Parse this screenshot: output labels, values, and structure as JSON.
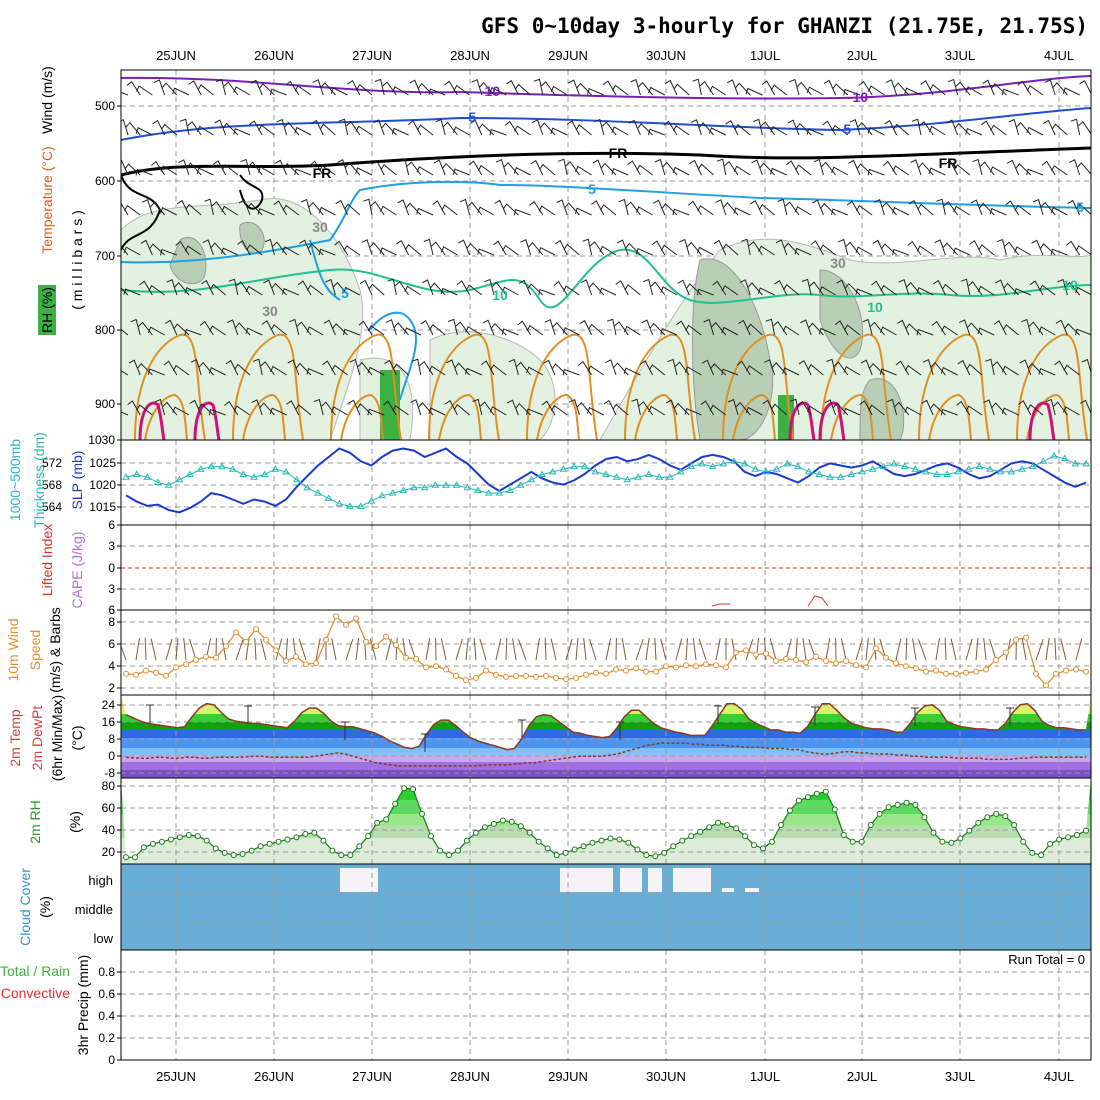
{
  "title": "GFS 0~10day 3-hourly for GHANZI (21.75E, 21.75S)",
  "dates": [
    "25JUN",
    "26JUN",
    "27JUN",
    "28JUN",
    "29JUN",
    "30JUN",
    "1JUL",
    "2JUL",
    "3JUL",
    "4JUL"
  ],
  "colors": {
    "rh": "#3cb043",
    "temp_cold": "#7a1fb8",
    "temp_blue": "#1f4fd0",
    "temp_light": "#1fa0e0",
    "temp_teal": "#20c090",
    "temp_orange": "#e09020",
    "temp_magenta": "#d0107a",
    "slp": "#1a3acc",
    "thickness": "#28b8b8",
    "wind10m": "#e09030",
    "cloud": "#6aaed6",
    "precip_total": "#3cb043",
    "precip_conv": "#e03030"
  },
  "panels": {
    "upper": {
      "ylabels": [
        "Wind (m/s)",
        "Temperature (°C)",
        "RH (%)",
        "( m i l l i b a r s )"
      ],
      "pressure_ticks": [
        "500",
        "600",
        "700",
        "800",
        "900",
        "1030"
      ],
      "contour_labels": [
        "-10",
        "-10",
        "-5",
        "-5",
        "FR",
        "FR",
        "FR",
        "5",
        "5",
        "5",
        "10",
        "10",
        "10",
        "30",
        "30",
        "30"
      ],
      "wind_barbs": "wind-barb-icons"
    },
    "slp": {
      "ylabels": [
        "1000~500mb",
        "Thickness (dm)",
        "SLP (mb)"
      ],
      "thick_ticks": [
        "572",
        "568",
        "564"
      ],
      "slp_ticks": [
        "1025",
        "1020",
        "1015"
      ]
    },
    "li": {
      "ylabels": [
        "Lifted Index",
        "CAPE (J/kg)"
      ],
      "ticks": [
        "6",
        "3",
        "0",
        "3",
        "6"
      ]
    },
    "wind10": {
      "ylabels": [
        "10m Wind",
        "Speed",
        "(m/s) & Barbs"
      ],
      "ticks": [
        "8",
        "6",
        "4",
        "2"
      ]
    },
    "temp2m": {
      "ylabels": [
        "2m Temp",
        "2m DewPt",
        "(6hr Min/Max)",
        "(°C)"
      ],
      "ticks": [
        "24",
        "16",
        "8",
        "0",
        "-8"
      ]
    },
    "rh2m": {
      "ylabels": [
        "2m RH",
        "(%)"
      ],
      "ticks": [
        "80",
        "60",
        "40",
        "20"
      ]
    },
    "cloud": {
      "ylabels": [
        "Cloud Cover",
        "(%)"
      ],
      "levels": [
        "high",
        "middle",
        "low"
      ]
    },
    "precip": {
      "ylabels": [
        "Total / Rain",
        "Convective",
        "3hr Precip (mm)"
      ],
      "ticks": [
        "0.8",
        "0.6",
        "0.4",
        "0.2",
        "0"
      ],
      "run_total": "Run Total = 0"
    }
  },
  "chart_data": [
    {
      "type": "line",
      "title": "",
      "xlabel": "",
      "ylabel": "SLP (mb)",
      "series": [
        {
          "name": "SLP (mb)",
          "values": [
            1017,
            1015.5,
            1014.5,
            1014.8,
            1013.5,
            1013,
            1014,
            1015.5,
            1017.5,
            1017,
            1016,
            1015,
            1016,
            1015.5,
            1014.5,
            1016,
            1019,
            1021.5,
            1024,
            1026,
            1028,
            1027,
            1025,
            1024,
            1026,
            1027.5,
            1028,
            1027.5,
            1026,
            1027,
            1028,
            1026,
            1024.5,
            1022,
            1019.5,
            1018,
            1019.5,
            1021,
            1022.5,
            1021,
            1020,
            1019.5,
            1020.5,
            1022,
            1024,
            1025.5,
            1026,
            1025,
            1025.5,
            1026.5,
            1025.5,
            1024,
            1023,
            1024.5,
            1026,
            1026.5,
            1026,
            1025,
            1022.5,
            1021.5,
            1022.5,
            1022,
            1021,
            1020,
            1021.5,
            1023.5,
            1024.5,
            1024,
            1023.5,
            1024,
            1025,
            1023.5,
            1022,
            1021.5,
            1022,
            1023,
            1024,
            1024.5,
            1023.5,
            1022,
            1021,
            1021.5,
            1023,
            1024.5,
            1025,
            1024.5,
            1023,
            1021.5,
            1020,
            1019,
            1020
          ]
        },
        {
          "name": "Thickness (dm)",
          "values": [
            569,
            569.5,
            569,
            568,
            567.5,
            568.5,
            569.5,
            570.5,
            571,
            571,
            570.5,
            569.5,
            569,
            569.5,
            570.5,
            570,
            568.5,
            567,
            566,
            565,
            564,
            563.5,
            563.5,
            564.5,
            565.5,
            566,
            566.5,
            567,
            567,
            567.5,
            567.5,
            567.5,
            567,
            566.5,
            566,
            566,
            566.5,
            567.5,
            568.5,
            569.5,
            570,
            570.5,
            571,
            571,
            570,
            569.5,
            569,
            568.5,
            569,
            569.5,
            569,
            569,
            570,
            571,
            571.5,
            571,
            571.5,
            572,
            571.5,
            570.5,
            570,
            570.5,
            571.5,
            571,
            570,
            569.5,
            569,
            569,
            569.5,
            570,
            570.5,
            571,
            571.5,
            571,
            570.5,
            570,
            569.5,
            569.5,
            570,
            570.5,
            571,
            570.5,
            570,
            570,
            570.5,
            571,
            572,
            573,
            572.5,
            571.5,
            571.5
          ]
        }
      ],
      "ylim": [
        1010,
        1030
      ]
    },
    {
      "type": "line",
      "title": "",
      "xlabel": "",
      "ylabel": "Speed (m/s)",
      "series": [
        {
          "name": "10m Wind Speed",
          "values": [
            3,
            2.9,
            3.3,
            3.1,
            2.8,
            3.6,
            3.9,
            4.3,
            4.6,
            4.5,
            5.6,
            6.9,
            6.0,
            7.2,
            6.2,
            5.2,
            4.2,
            4.6,
            3.9,
            4.0,
            6.2,
            8.4,
            7.6,
            8.2,
            6.0,
            5.6,
            6.5,
            5.7,
            4.5,
            4.4,
            3.6,
            3.7,
            3.4,
            2.8,
            2.4,
            2.6,
            3.3,
            2.9,
            2.7,
            2.8,
            2.8,
            2.7,
            2.8,
            2.6,
            2.5,
            2.6,
            2.9,
            3.1,
            3.0,
            3.4,
            3.3,
            3.5,
            3.2,
            3.2,
            3.7,
            3.6,
            3.8,
            3.7,
            3.9,
            3.8,
            3.6,
            5.0,
            5.2,
            4.8,
            4.9,
            4.2,
            4.4,
            4.3,
            4.1,
            4.6,
            4.2,
            4.0,
            4.2,
            3.8,
            3.6,
            5.4,
            4.5,
            4.0,
            3.7,
            3.5,
            3.2,
            3.3,
            3.0,
            3.0,
            3.1,
            3.2,
            3.4,
            4.3,
            5.0,
            6.2,
            6.4,
            3.0,
            1.9,
            3.0,
            3.3,
            3.4,
            3.2
          ]
        }
      ],
      "ylim": [
        2,
        9
      ]
    },
    {
      "type": "area",
      "title": "",
      "xlabel": "",
      "ylabel": "(°C)",
      "series": [
        {
          "name": "2m Temp",
          "values": [
            19,
            17.5,
            16,
            15,
            14.5,
            14,
            13.5,
            13,
            13.5,
            18,
            22,
            24,
            23.5,
            20,
            17,
            16,
            15.5,
            15,
            15,
            14.5,
            14,
            13.5,
            13,
            16,
            20,
            22,
            22,
            19.5,
            16,
            14,
            13.5,
            13.5,
            12.5,
            11.5,
            10.5,
            9,
            7,
            5.5,
            4,
            3.5,
            4.5,
            10,
            14.5,
            16.5,
            16.5,
            14,
            11,
            8.5,
            7,
            6,
            5,
            4,
            3,
            3.5,
            8,
            14,
            18,
            19,
            18.5,
            16,
            13.5,
            11,
            10.5,
            9.5,
            9,
            8.5,
            9,
            13,
            18,
            21,
            21,
            18,
            15,
            13,
            12,
            11,
            10.5,
            9.5,
            9.5,
            9.5,
            14,
            19,
            24,
            24,
            21.5,
            17,
            15,
            13.5,
            12,
            12,
            11,
            11,
            10.5,
            13.5,
            19,
            24,
            24,
            21,
            17.5,
            15,
            14,
            13,
            12.5,
            12.5,
            12,
            11,
            11,
            15,
            20,
            23,
            23.5,
            21,
            16,
            14.5,
            13.5,
            13,
            12.5,
            12.5,
            12,
            12,
            15,
            20,
            23.5,
            24,
            21,
            16,
            14,
            13,
            13,
            12.5,
            12,
            12
          ]
        },
        {
          "name": "2m DewPt",
          "values": [
            -0.5,
            -0.8,
            -1,
            -1,
            -0.5,
            -0.5,
            -1,
            -1,
            -0.5,
            -0.5,
            -1,
            -1,
            -0.5,
            -0.5,
            -0.5,
            -0.5,
            -0.3,
            0,
            0,
            -0.5,
            -0.5,
            -0.5,
            -0.5,
            -0.5,
            -0.5,
            0,
            0.5,
            1,
            1.5,
            1,
            0,
            -1,
            -2,
            -3,
            -3.5,
            -4,
            -4.5,
            -4.5,
            -4.5,
            -4.5,
            -4.5,
            -4.5,
            -4.5,
            -4.5,
            -4.5,
            -4.5,
            -4.5,
            -4.3,
            -4,
            -4,
            -4,
            -3.8,
            -3.5,
            -3,
            -3,
            -2.5,
            -2,
            -1.5,
            -1,
            -0.5,
            0,
            0,
            0,
            0,
            0.5,
            1,
            2,
            3,
            4,
            5,
            5.5,
            6,
            6,
            6,
            6,
            5.5,
            5.5,
            5,
            5,
            5,
            4.5,
            4.5,
            4,
            4,
            4,
            3.5,
            3.5,
            3.5,
            3,
            3,
            2,
            1.5,
            1,
            1,
            1.5,
            2,
            2,
            1.5,
            1.5,
            1,
            1,
            1,
            0.5,
            0.5,
            0,
            0,
            -0.5,
            -0.5,
            -0.5,
            -0.5,
            -1,
            -1,
            -1,
            -1,
            -1.5,
            -1.5,
            -1.5,
            -1.5,
            -1,
            -1,
            -0.5,
            -0.5,
            -0.5,
            -0.5,
            -0.5,
            -0.5,
            -0.5,
            -0.5
          ]
        }
      ],
      "ylim": [
        -10,
        28
      ]
    },
    {
      "type": "area",
      "title": "",
      "xlabel": "",
      "ylabel": "(%)",
      "series": [
        {
          "name": "2m RH",
          "values": [
            16,
            16,
            25,
            28,
            30,
            32,
            34,
            36,
            35,
            31,
            24,
            20,
            18,
            19,
            22,
            26,
            28,
            30,
            32,
            34,
            37,
            38,
            31,
            22,
            18,
            18,
            26,
            35,
            47,
            50,
            64,
            78,
            77,
            55,
            35,
            22,
            18,
            22,
            31,
            38,
            43,
            46,
            49,
            48,
            44,
            38,
            30,
            24,
            18,
            20,
            23,
            26,
            29,
            31,
            33,
            32,
            29,
            23,
            18,
            17,
            20,
            26,
            31,
            35,
            39,
            43,
            47,
            45,
            42,
            35,
            27,
            24,
            30,
            45,
            58,
            67,
            70,
            73,
            75,
            59,
            36,
            30,
            30,
            45,
            55,
            61,
            63,
            65,
            63,
            52,
            38,
            30,
            29,
            33,
            40,
            47,
            52,
            55,
            53,
            45,
            30,
            20,
            18,
            28,
            32,
            34,
            36,
            40
          ]
        }
      ],
      "ylim": [
        10,
        80
      ]
    },
    {
      "type": "bar",
      "title": "",
      "xlabel": "",
      "ylabel": "3hr Precip (mm)",
      "categories": [
        "25JUN",
        "26JUN",
        "27JUN",
        "28JUN",
        "29JUN",
        "30JUN",
        "1JUL",
        "2JUL",
        "3JUL",
        "4JUL"
      ],
      "series": [
        {
          "name": "Total / Rain",
          "values": [
            0,
            0,
            0,
            0,
            0,
            0,
            0,
            0,
            0,
            0
          ]
        },
        {
          "name": "Convective",
          "values": [
            0,
            0,
            0,
            0,
            0,
            0,
            0,
            0,
            0,
            0
          ]
        }
      ],
      "ylim": [
        0,
        0.9
      ]
    }
  ]
}
